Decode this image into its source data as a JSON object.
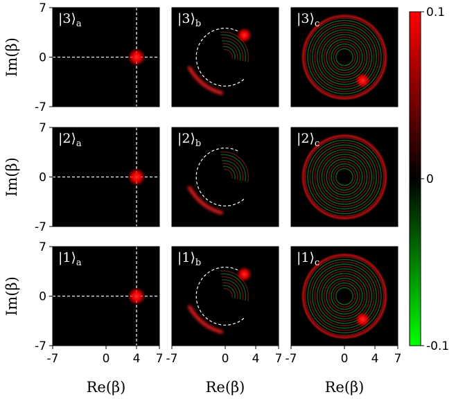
{
  "chart_data": {
    "type": "heatmap",
    "description_free": true,
    "grid": {
      "rows": 3,
      "cols": 3
    },
    "x_range": [
      -7,
      7
    ],
    "y_range": [
      -7,
      7
    ],
    "xlabel": "Re(β)",
    "ylabel": "Im(β)",
    "x_ticks": [
      "-7",
      "0",
      "4",
      "7"
    ],
    "x_tick_values": [
      -7,
      0,
      4,
      7
    ],
    "y_ticks": [
      "7",
      "0",
      "-7"
    ],
    "y_tick_values": [
      7,
      0,
      -7
    ],
    "colorbar": {
      "ticks": [
        "0.1",
        "0",
        "-0.1"
      ],
      "tick_values": [
        0.1,
        0,
        -0.1
      ],
      "range": [
        -0.1,
        0.1
      ],
      "colors": {
        "max": "#ff0000",
        "mid": "#000000",
        "min": "#00ff00"
      }
    },
    "panels": [
      {
        "row": 0,
        "col": 0,
        "label": "|3⟩",
        "sub": "a",
        "kind": "coherent",
        "peak": [
          4,
          0
        ],
        "crosshair": [
          4,
          0
        ]
      },
      {
        "row": 0,
        "col": 1,
        "label": "|3⟩",
        "sub": "b",
        "kind": "arc",
        "peak": [
          2.5,
          3.1
        ]
      },
      {
        "row": 0,
        "col": 2,
        "label": "|3⟩",
        "sub": "c",
        "kind": "ring",
        "peak": [
          2.4,
          -3.3
        ]
      },
      {
        "row": 1,
        "col": 0,
        "label": "|2⟩",
        "sub": "a",
        "kind": "coherent",
        "peak": [
          4,
          0
        ],
        "crosshair": [
          4,
          0
        ]
      },
      {
        "row": 1,
        "col": 1,
        "label": "|2⟩",
        "sub": "b",
        "kind": "arc",
        "peak": null
      },
      {
        "row": 1,
        "col": 2,
        "label": "|2⟩",
        "sub": "c",
        "kind": "ring",
        "peak": null
      },
      {
        "row": 2,
        "col": 0,
        "label": "|1⟩",
        "sub": "a",
        "kind": "coherent",
        "peak": [
          4,
          0
        ],
        "crosshair": [
          4,
          0
        ]
      },
      {
        "row": 2,
        "col": 1,
        "label": "|1⟩",
        "sub": "b",
        "kind": "arc",
        "peak": [
          2.5,
          3.1
        ]
      },
      {
        "row": 2,
        "col": 2,
        "label": "|1⟩",
        "sub": "c",
        "kind": "ring",
        "peak": [
          2.4,
          -3.3
        ]
      }
    ]
  }
}
